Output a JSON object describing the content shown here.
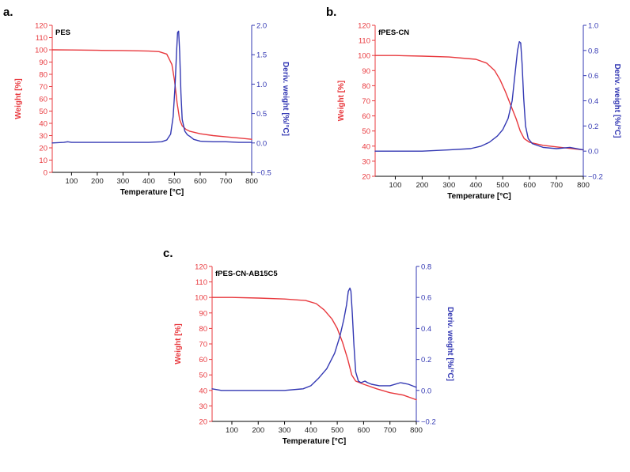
{
  "colors": {
    "weight": "#e8383d",
    "deriv": "#3338b3",
    "axis": "#000000"
  },
  "chart_data": [
    {
      "type": "line",
      "panel_label": "a.",
      "title": "PES",
      "xlabel": "Temperature [°C]",
      "ylabel": "Weight [%]",
      "y2label": "Deriv. weight [%/°C]",
      "xlim": [
        25,
        800
      ],
      "ylim": [
        0,
        120
      ],
      "y2lim": [
        -0.5,
        2.0
      ],
      "x_ticks": [
        100,
        200,
        300,
        400,
        500,
        600,
        700,
        800
      ],
      "y_ticks": [
        0,
        10,
        20,
        30,
        40,
        50,
        60,
        70,
        80,
        90,
        100,
        110,
        120
      ],
      "y2_ticks": [
        -0.5,
        0.0,
        0.5,
        1.0,
        1.5,
        2.0
      ],
      "y2_tick_labels": [
        "−0.5",
        "0.0",
        "0.5",
        "1.0",
        "1.5",
        "2.0"
      ],
      "series": [
        {
          "name": "Weight [%]",
          "axis": "left",
          "x": [
            25,
            100,
            200,
            300,
            400,
            440,
            470,
            490,
            500,
            510,
            520,
            530,
            545,
            560,
            600,
            650,
            700,
            750,
            800
          ],
          "y": [
            100,
            99.9,
            99.6,
            99.4,
            99,
            98.5,
            96.5,
            88,
            75,
            57,
            43,
            38,
            35,
            33.5,
            31.5,
            30,
            29,
            28,
            27
          ]
        },
        {
          "name": "Deriv. weight [%/°C]",
          "axis": "right",
          "x": [
            25,
            70,
            85,
            100,
            150,
            200,
            300,
            400,
            450,
            470,
            485,
            495,
            502,
            508,
            512,
            516,
            520,
            525,
            530,
            540,
            550,
            560,
            575,
            600,
            650,
            700,
            750,
            800
          ],
          "y": [
            0.0,
            0.01,
            0.02,
            0.01,
            0.01,
            0.01,
            0.01,
            0.01,
            0.02,
            0.05,
            0.15,
            0.45,
            0.95,
            1.55,
            1.88,
            1.9,
            1.55,
            0.85,
            0.4,
            0.2,
            0.14,
            0.11,
            0.06,
            0.03,
            0.02,
            0.02,
            0.01,
            0.01
          ]
        }
      ]
    },
    {
      "type": "line",
      "panel_label": "b.",
      "title": "fPES-CN",
      "xlabel": "Temperature [°C]",
      "ylabel": "Weight [%]",
      "y2label": "Deriv. weight [%/°C]",
      "xlim": [
        25,
        800
      ],
      "ylim": [
        20,
        120
      ],
      "y2lim": [
        -0.2,
        1.0
      ],
      "x_ticks": [
        100,
        200,
        300,
        400,
        500,
        600,
        700,
        800
      ],
      "y_ticks": [
        20,
        30,
        40,
        50,
        60,
        70,
        80,
        90,
        100,
        110,
        120
      ],
      "y2_ticks": [
        -0.2,
        0.0,
        0.2,
        0.4,
        0.6,
        0.8,
        1.0
      ],
      "y2_tick_labels": [
        "−0.2",
        "0.0",
        "0.2",
        "0.4",
        "0.6",
        "0.8",
        "1.0"
      ],
      "series": [
        {
          "name": "Weight [%]",
          "axis": "left",
          "x": [
            25,
            100,
            200,
            300,
            400,
            440,
            470,
            490,
            510,
            530,
            550,
            565,
            580,
            600,
            650,
            700,
            750,
            800
          ],
          "y": [
            100,
            100,
            99.6,
            99,
            97.5,
            95,
            90,
            84,
            76,
            67,
            58,
            50,
            45,
            42.5,
            40.5,
            39.5,
            38.5,
            37.5
          ]
        },
        {
          "name": "Deriv. weight [%/°C]",
          "axis": "right",
          "x": [
            25,
            100,
            200,
            300,
            380,
            420,
            450,
            480,
            500,
            520,
            535,
            545,
            555,
            562,
            567,
            572,
            578,
            585,
            595,
            610,
            650,
            700,
            750,
            800
          ],
          "y": [
            0.0,
            0.0,
            0.0,
            0.01,
            0.02,
            0.04,
            0.07,
            0.12,
            0.17,
            0.26,
            0.4,
            0.6,
            0.8,
            0.87,
            0.86,
            0.7,
            0.42,
            0.2,
            0.1,
            0.06,
            0.03,
            0.02,
            0.03,
            0.01
          ]
        }
      ]
    },
    {
      "type": "line",
      "panel_label": "c.",
      "title": "fPES-CN-AB15C5",
      "xlabel": "Temperature [°C]",
      "ylabel": "Weight [%]",
      "y2label": "Deriv. weight [%/°C]",
      "xlim": [
        25,
        800
      ],
      "ylim": [
        20,
        120
      ],
      "y2lim": [
        -0.2,
        0.8
      ],
      "x_ticks": [
        100,
        200,
        300,
        400,
        500,
        600,
        700,
        800
      ],
      "y_ticks": [
        20,
        30,
        40,
        50,
        60,
        70,
        80,
        90,
        100,
        110,
        120
      ],
      "y2_ticks": [
        -0.2,
        0.0,
        0.2,
        0.4,
        0.6,
        0.8
      ],
      "y2_tick_labels": [
        "−0.2",
        "0.0",
        "0.2",
        "0.4",
        "0.6",
        "0.8"
      ],
      "series": [
        {
          "name": "Weight [%]",
          "axis": "left",
          "x": [
            25,
            100,
            200,
            300,
            380,
            420,
            450,
            480,
            500,
            520,
            540,
            555,
            570,
            600,
            650,
            700,
            750,
            800
          ],
          "y": [
            100,
            100,
            99.6,
            99,
            98,
            96,
            92,
            86,
            80,
            71,
            60,
            50,
            46,
            44,
            41,
            38.5,
            37,
            34
          ]
        },
        {
          "name": "Deriv. weight [%/°C]",
          "axis": "right",
          "x": [
            25,
            60,
            100,
            200,
            300,
            370,
            400,
            430,
            460,
            490,
            510,
            525,
            535,
            542,
            548,
            552,
            557,
            563,
            570,
            580,
            590,
            605,
            615,
            630,
            660,
            700,
            740,
            770,
            800
          ],
          "y": [
            0.01,
            0.0,
            0.0,
            0.0,
            0.0,
            0.01,
            0.03,
            0.08,
            0.14,
            0.24,
            0.35,
            0.46,
            0.55,
            0.64,
            0.66,
            0.64,
            0.5,
            0.3,
            0.12,
            0.06,
            0.05,
            0.06,
            0.05,
            0.04,
            0.03,
            0.03,
            0.05,
            0.04,
            0.02
          ]
        }
      ]
    }
  ]
}
